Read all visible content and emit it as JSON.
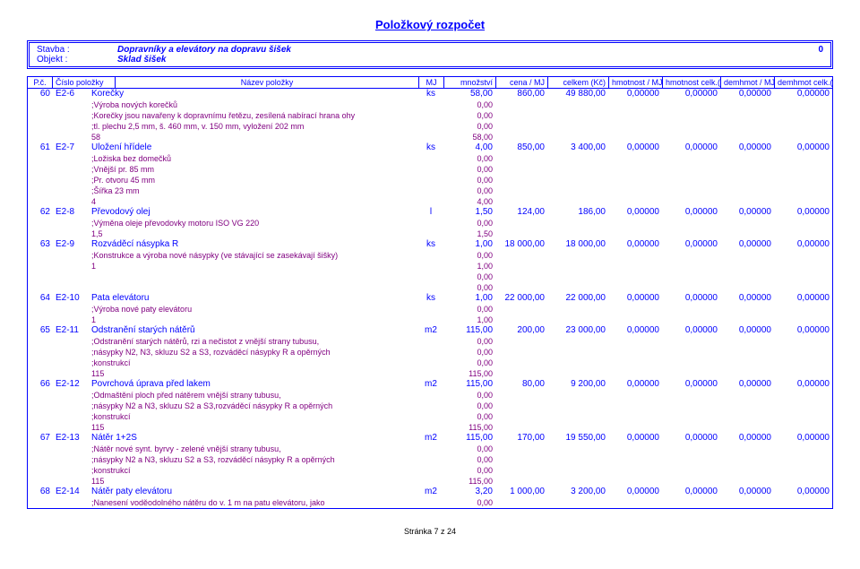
{
  "title": "Položkový rozpočet",
  "info": {
    "l1": "Stavba :",
    "l2": "Objekt :",
    "m1": "Dopravníky a elevátory na dopravu šišek",
    "m2": "Sklad šišek",
    "r1": "0"
  },
  "header_cols": [
    "P.č.",
    "Číslo položky",
    "Název položky",
    "MJ",
    "množství",
    "cena / MJ",
    "celkem (Kč)",
    "hmotnost / MJ",
    "hmotnost celk.(t)",
    "demhmot / MJ",
    "demhmot celk.(t)"
  ],
  "rows": [
    {
      "t": "item",
      "pc": "60",
      "cp": "E2-6",
      "name": "Korečky",
      "mj": "ks",
      "mn": "58,00",
      "cena": "860,00",
      "celk": "49 880,00",
      "hm": "0,00000",
      "hc": "0,00000",
      "dm": "0,00000",
      "dc": "0,00000"
    },
    {
      "t": "desc",
      "name": ";Výroba nových korečků",
      "mn": "0,00"
    },
    {
      "t": "desc",
      "name": ";Korečky jsou navařeny k dopravnímu řetězu, zesílená nabírací hrana ohy",
      "mn": "0,00"
    },
    {
      "t": "desc",
      "name": ";tl. plechu 2,5 mm, š. 460 mm, v. 150 mm, vyložení 202 mm",
      "mn": "0,00"
    },
    {
      "t": "desc",
      "name": "58",
      "mn": "58,00"
    },
    {
      "t": "item",
      "pc": "61",
      "cp": "E2-7",
      "name": "Uložení hřídele",
      "mj": "ks",
      "mn": "4,00",
      "cena": "850,00",
      "celk": "3 400,00",
      "hm": "0,00000",
      "hc": "0,00000",
      "dm": "0,00000",
      "dc": "0,00000"
    },
    {
      "t": "desc",
      "name": ";Ložiska bez domečků",
      "mn": "0,00"
    },
    {
      "t": "desc",
      "name": ";Vnější pr. 85 mm",
      "mn": "0,00"
    },
    {
      "t": "desc",
      "name": ";Pr. otvoru 45 mm",
      "mn": "0,00"
    },
    {
      "t": "desc",
      "name": ";Šířka 23 mm",
      "mn": "0,00"
    },
    {
      "t": "desc",
      "name": "4",
      "mn": "4,00"
    },
    {
      "t": "item",
      "pc": "62",
      "cp": "E2-8",
      "name": "Převodový olej",
      "mj": "l",
      "mn": "1,50",
      "cena": "124,00",
      "celk": "186,00",
      "hm": "0,00000",
      "hc": "0,00000",
      "dm": "0,00000",
      "dc": "0,00000"
    },
    {
      "t": "desc",
      "name": ";Výměna oleje převodovky motoru ISO VG 220",
      "mn": "0,00"
    },
    {
      "t": "desc",
      "name": "1,5",
      "mn": "1,50"
    },
    {
      "t": "item",
      "pc": "63",
      "cp": "E2-9",
      "name": "Rozváděcí násypka R",
      "mj": "ks",
      "mn": "1,00",
      "cena": "18 000,00",
      "celk": "18 000,00",
      "hm": "0,00000",
      "hc": "0,00000",
      "dm": "0,00000",
      "dc": "0,00000"
    },
    {
      "t": "desc",
      "name": ";Konstrukce a výroba nové násypky (ve stávající se zasekávají šišky)",
      "mn": "0,00"
    },
    {
      "t": "desc",
      "name": "1",
      "mn": "1,00"
    },
    {
      "t": "desc",
      "name": "",
      "mn": "0,00"
    },
    {
      "t": "desc",
      "name": "",
      "mn": "0,00"
    },
    {
      "t": "item",
      "pc": "64",
      "cp": "E2-10",
      "name": "Pata elevátoru",
      "mj": "ks",
      "mn": "1,00",
      "cena": "22 000,00",
      "celk": "22 000,00",
      "hm": "0,00000",
      "hc": "0,00000",
      "dm": "0,00000",
      "dc": "0,00000"
    },
    {
      "t": "desc",
      "name": ";Výroba nové paty elevátoru",
      "mn": "0,00"
    },
    {
      "t": "desc",
      "name": "1",
      "mn": "1,00"
    },
    {
      "t": "item",
      "pc": "65",
      "cp": "E2-11",
      "name": "Odstranění starých nátěrů",
      "mj": "m2",
      "mn": "115,00",
      "cena": "200,00",
      "celk": "23 000,00",
      "hm": "0,00000",
      "hc": "0,00000",
      "dm": "0,00000",
      "dc": "0,00000"
    },
    {
      "t": "desc",
      "name": ";Odstranění starých nátěrů, rzi a nečistot z vnější strany tubusu,",
      "mn": "0,00"
    },
    {
      "t": "desc",
      "name": ";násypky N2, N3, skluzu S2 a S3, rozváděcí násypky R a opěrných",
      "mn": "0,00"
    },
    {
      "t": "desc",
      "name": ";konstrukcí",
      "mn": "0,00"
    },
    {
      "t": "desc",
      "name": "115",
      "mn": "115,00"
    },
    {
      "t": "item",
      "pc": "66",
      "cp": "E2-12",
      "name": "Povrchová úprava před lakem",
      "mj": "m2",
      "mn": "115,00",
      "cena": "80,00",
      "celk": "9 200,00",
      "hm": "0,00000",
      "hc": "0,00000",
      "dm": "0,00000",
      "dc": "0,00000"
    },
    {
      "t": "desc",
      "name": ";Odmaštění ploch před nátěrem vnější strany tubusu,",
      "mn": "0,00"
    },
    {
      "t": "desc",
      "name": ";násypky N2 a N3, skluzu S2 a S3,rozváděcí násypky R a opěrných",
      "mn": "0,00"
    },
    {
      "t": "desc",
      "name": ";konstrukcí",
      "mn": "0,00"
    },
    {
      "t": "desc",
      "name": "115",
      "mn": "115,00"
    },
    {
      "t": "item",
      "pc": "67",
      "cp": "E2-13",
      "name": "Nátěr 1+2S",
      "mj": "m2",
      "mn": "115,00",
      "cena": "170,00",
      "celk": "19 550,00",
      "hm": "0,00000",
      "hc": "0,00000",
      "dm": "0,00000",
      "dc": "0,00000"
    },
    {
      "t": "desc",
      "name": ";Nátěr nové synt. byrvy - zelené vnější strany tubusu,",
      "mn": "0,00"
    },
    {
      "t": "desc",
      "name": ";násypky N2 a N3, skluzu S2 a S3, rozváděcí násypky R a opěrných",
      "mn": "0,00"
    },
    {
      "t": "desc",
      "name": ";konstrukcí",
      "mn": "0,00"
    },
    {
      "t": "desc",
      "name": "115",
      "mn": "115,00"
    },
    {
      "t": "item",
      "pc": "68",
      "cp": "E2-14",
      "name": "Nátěr paty elevátoru",
      "mj": "m2",
      "mn": "3,20",
      "cena": "1 000,00",
      "celk": "3 200,00",
      "hm": "0,00000",
      "hc": "0,00000",
      "dm": "0,00000",
      "dc": "0,00000"
    },
    {
      "t": "desc",
      "name": ";Nanesení voděodolného nátěru do v. 1 m na patu elevátoru, jako",
      "mn": "0,00"
    }
  ],
  "footer": "Stránka 7 z 24"
}
